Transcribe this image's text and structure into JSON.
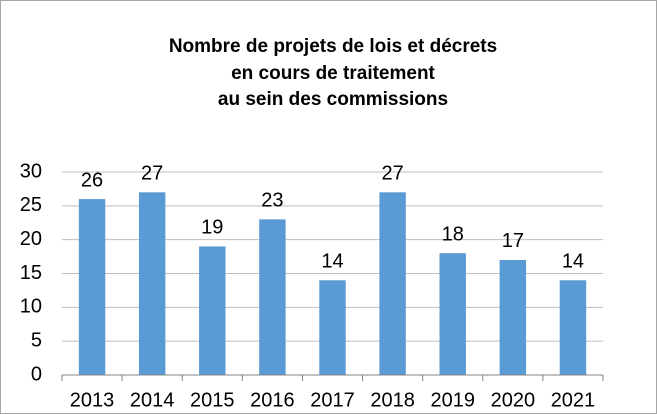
{
  "chart_data": {
    "type": "bar",
    "title": [
      "Nombre de projets de lois et décrets",
      "en cours de traitement",
      "au sein des commissions"
    ],
    "categories": [
      "2013",
      "2014",
      "2015",
      "2016",
      "2017",
      "2018",
      "2019",
      "2020",
      "2021"
    ],
    "values": [
      26,
      27,
      19,
      23,
      14,
      27,
      18,
      17,
      14
    ],
    "color": "#5b9bd5",
    "ylim": [
      0,
      30
    ],
    "yticks": [
      0,
      5,
      10,
      15,
      20,
      25,
      30
    ],
    "grid": true
  }
}
